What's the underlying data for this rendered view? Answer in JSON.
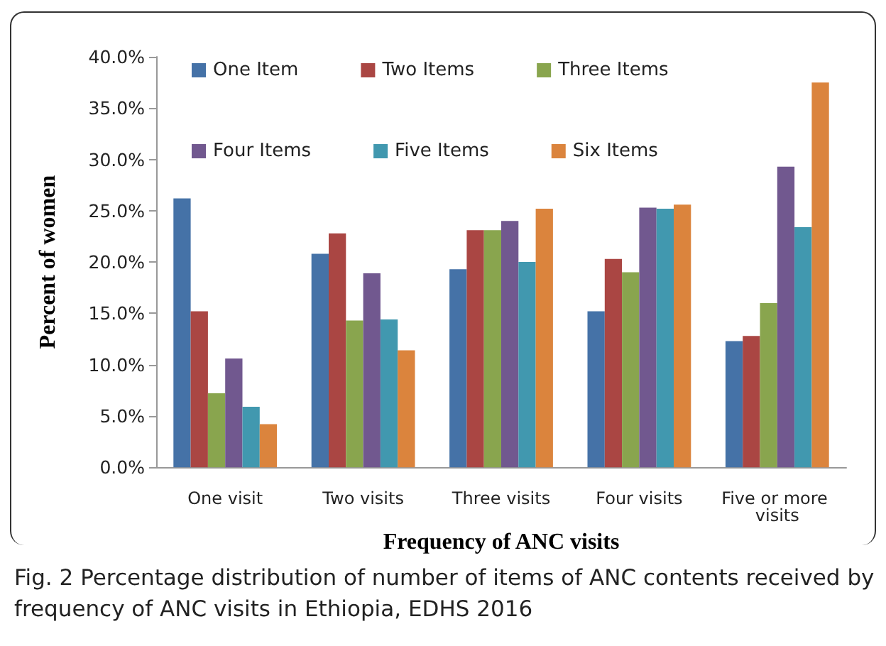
{
  "chart_data": {
    "type": "bar",
    "xlabel": "Frequency of ANC visits",
    "ylabel": "Percent of women",
    "categories": [
      "One visit",
      "Two visits",
      "Three visits",
      "Four visits",
      "Five or more visits"
    ],
    "series": [
      {
        "name": "One Item",
        "color": "#4572a7",
        "values": [
          26.2,
          20.8,
          19.3,
          15.2,
          12.3
        ]
      },
      {
        "name": "Two Items",
        "color": "#aa4643",
        "values": [
          15.2,
          22.8,
          23.1,
          20.3,
          12.8
        ]
      },
      {
        "name": "Three Items",
        "color": "#89a54e",
        "values": [
          7.2,
          14.3,
          23.1,
          19.0,
          16.0
        ]
      },
      {
        "name": "Four Items",
        "color": "#71588f",
        "values": [
          10.6,
          18.9,
          24.0,
          25.3,
          29.3
        ]
      },
      {
        "name": "Five Items",
        "color": "#4198af",
        "values": [
          5.9,
          14.4,
          20.0,
          25.2,
          23.4
        ]
      },
      {
        "name": "Six Items",
        "color": "#db843d",
        "values": [
          4.2,
          11.4,
          25.2,
          25.6,
          37.5
        ]
      }
    ],
    "ylim": [
      0,
      40
    ],
    "yticks": [
      {
        "value": 0,
        "label": "0.0%"
      },
      {
        "value": 5,
        "label": "5.0%"
      },
      {
        "value": 10,
        "label": "10.0%"
      },
      {
        "value": 15,
        "label": "15.0%"
      },
      {
        "value": 20,
        "label": "20.0%"
      },
      {
        "value": 25,
        "label": "25.0%"
      },
      {
        "value": 30,
        "label": "30.0%"
      },
      {
        "value": 35,
        "label": "35.0%"
      },
      {
        "value": 40,
        "label": "40.0%"
      }
    ],
    "grid": false,
    "legend": "top left",
    "annotations": [
      "Fig. 2  Percentage distribution of number of items of ANC contents received by frequency of ANC visits in Ethiopia, EDHS 2016"
    ]
  }
}
